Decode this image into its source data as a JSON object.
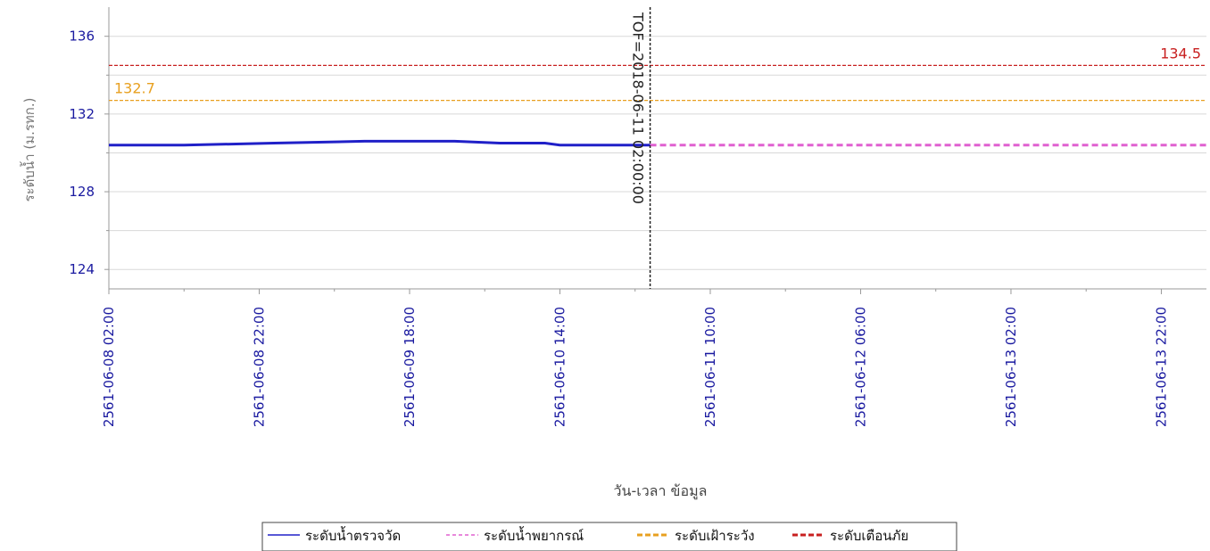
{
  "chart_data": {
    "type": "line",
    "title": "",
    "xlabel": "วัน-เวลา ข้อมูล",
    "ylabel": "ระดับน้ำ (ม.รทก.)",
    "ylim": [
      123,
      137.5
    ],
    "yticks": [
      124,
      128,
      132,
      136
    ],
    "x_range": [
      "2561-06-08 02:00",
      "2561-06-14 04:00"
    ],
    "xticks": [
      "2561-06-08 02:00",
      "2561-06-08 22:00",
      "2561-06-09 18:00",
      "2561-06-10 14:00",
      "2561-06-11 10:00",
      "2561-06-12 06:00",
      "2561-06-13 02:00",
      "2561-06-13 22:00"
    ],
    "grid": true,
    "legend_position": "bottom",
    "series": [
      {
        "name": "ระดับน้ำตรวจวัด",
        "color": "#2020c8",
        "style": "solid",
        "x": [
          "2561-06-08 02:00",
          "2561-06-08 12:00",
          "2561-06-09 00:00",
          "2561-06-09 12:00",
          "2561-06-10 00:00",
          "2561-06-10 06:00",
          "2561-06-10 12:00",
          "2561-06-10 14:00",
          "2561-06-11 00:00",
          "2561-06-11 02:00"
        ],
        "values": [
          130.4,
          130.4,
          130.5,
          130.6,
          130.6,
          130.5,
          130.5,
          130.4,
          130.4,
          130.4
        ]
      },
      {
        "name": "ระดับน้ำพยากรณ์",
        "color": "#e060d0",
        "style": "dashed",
        "x": [
          "2561-06-11 02:00",
          "2561-06-14 04:00"
        ],
        "values": [
          130.4,
          130.4
        ]
      },
      {
        "name": "ระดับเฝ้าระวัง",
        "color": "#e8a020",
        "style": "dashed",
        "value": 132.7
      },
      {
        "name": "ระดับเตือนภัย",
        "color": "#c82020",
        "style": "dashed",
        "value": 134.5
      }
    ],
    "annotations": {
      "watch_label": "132.7",
      "warning_label": "134.5",
      "tof_label": "TOF=2018-06-11 02:00:00",
      "tof_time": "2561-06-11 02:00"
    }
  }
}
